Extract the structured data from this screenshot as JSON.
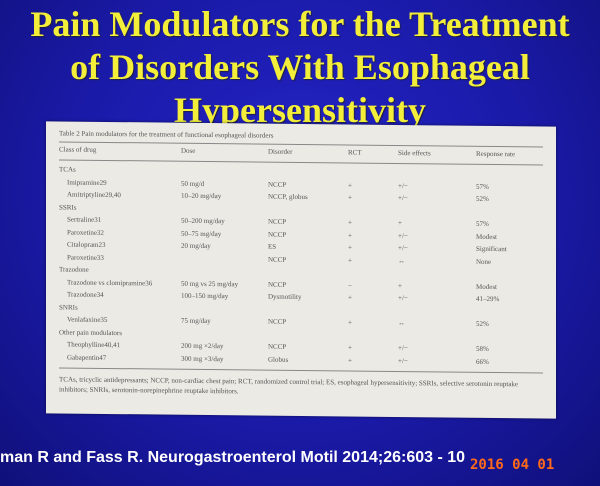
{
  "slide": {
    "title_lines": [
      "Pain Modulators for the Treatment",
      "of Disorders With  Esophageal",
      "Hypersensitivity"
    ],
    "citation": "man R and Fass R. Neurogastroenterol Motil 2014;26:603 - 10",
    "date_stamp": "2016 04 01"
  },
  "table": {
    "caption": "Table 2 Pain modulators for the treatment of functional esophageal disorders",
    "headers": [
      "Class of drug",
      "Dose",
      "Disorder",
      "RCT",
      "Side effects",
      "Response rate"
    ],
    "rows": [
      [
        "TCAs",
        "",
        "",
        "",
        "",
        ""
      ],
      [
        "Imipramine29",
        "50 mg/d",
        "NCCP",
        "+",
        "+/−",
        "57%"
      ],
      [
        "Amitriptyline29,40",
        "10–20 mg/day",
        "NCCP, globus",
        "+",
        "+/−",
        "52%"
      ],
      [
        "SSRIs",
        "",
        "",
        "",
        "",
        ""
      ],
      [
        "Sertraline31",
        "50–200 mg/day",
        "NCCP",
        "+",
        "+",
        "57%"
      ],
      [
        "Paroxetine32",
        "50–75 mg/day",
        "NCCP",
        "+",
        "+/−",
        "Modest"
      ],
      [
        "Citalopram23",
        "20 mg/day",
        "ES",
        "+",
        "+/−",
        "Significant"
      ],
      [
        "Paroxetine33",
        "",
        "NCCP",
        "+",
        "↔",
        "None"
      ],
      [
        "Trazodone",
        "",
        "",
        "",
        "",
        ""
      ],
      [
        "Trazodone vs clomipramine36",
        "50 mg vs 25 mg/day",
        "NCCP",
        "−",
        "+",
        "Modest"
      ],
      [
        "Trazodone34",
        "100–150 mg/day",
        "Dysmotility",
        "+",
        "+/−",
        "41–29%"
      ],
      [
        "SNRIs",
        "",
        "",
        "",
        "",
        ""
      ],
      [
        "Venlafaxine35",
        "75 mg/day",
        "NCCP",
        "+",
        "↔",
        "52%"
      ],
      [
        "Other pain modulators",
        "",
        "",
        "",
        "",
        ""
      ],
      [
        "Theophylline40,41",
        "200 mg ×2/day",
        "NCCP",
        "+",
        "+/−",
        "58%"
      ],
      [
        "Gabapentin47",
        "300 mg ×3/day",
        "Globus",
        "+",
        "+/−",
        "66%"
      ]
    ],
    "footnote": "TCAs, tricyclic antidepressants; NCCP, non-cardiac chest pain; RCT, randomized control trial; ES, esophageal hypersensitivity; SSRIs, selective serotonin reuptake inhibitors; SNRIs, serotonin-norepinephrine reuptake inhibitors."
  }
}
